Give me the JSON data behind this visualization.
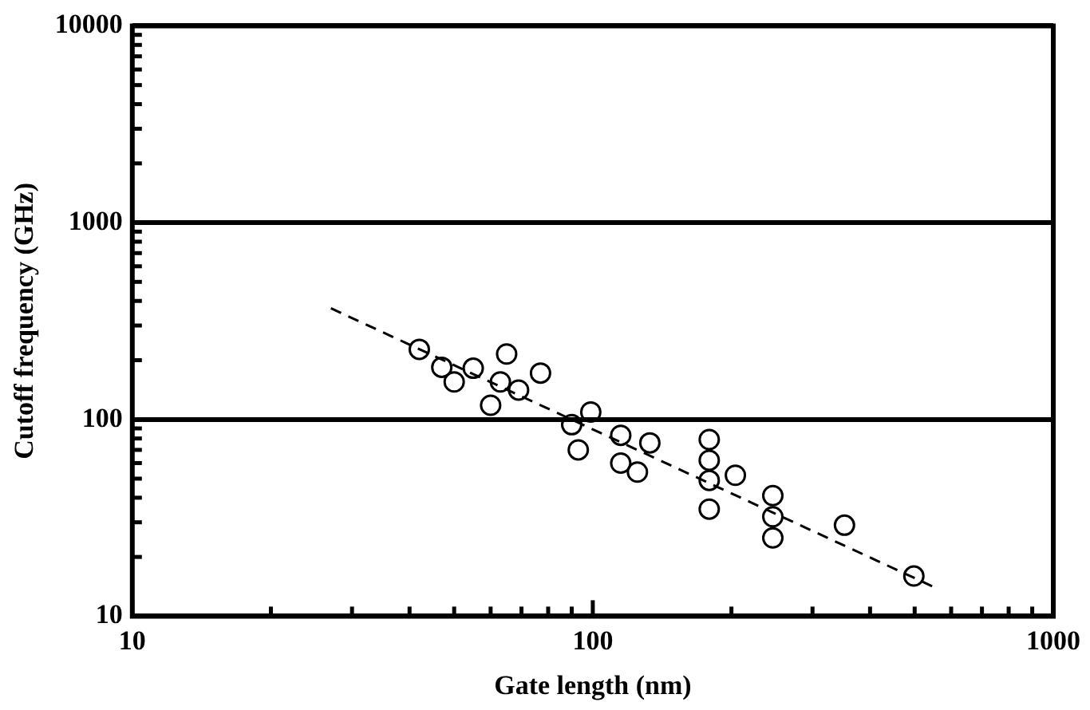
{
  "chart_data": {
    "type": "scatter",
    "xlabel": "Gate length (nm)",
    "ylabel": "Cutoff frequency (GHz)",
    "log": "xy",
    "xlim": [
      10,
      1000
    ],
    "ylim": [
      10,
      10000
    ],
    "xticks": [
      10,
      {
        "value": 20,
        "label": null
      },
      {
        "value": 30,
        "label": null
      },
      {
        "value": 40,
        "label": null
      },
      {
        "value": 50,
        "label": null
      },
      {
        "value": 60,
        "label": null
      },
      {
        "value": 70,
        "label": null
      },
      {
        "value": 80,
        "label": null
      },
      {
        "value": 90,
        "label": null
      },
      100,
      {
        "value": 200,
        "label": null
      },
      {
        "value": 300,
        "label": null
      },
      {
        "value": 400,
        "label": null
      },
      {
        "value": 500,
        "label": null
      },
      {
        "value": 600,
        "label": null
      },
      {
        "value": 700,
        "label": null
      },
      {
        "value": 800,
        "label": null
      },
      {
        "value": 900,
        "label": null
      },
      1000
    ],
    "yticks": [
      10,
      {
        "value": 20,
        "label": null
      },
      {
        "value": 30,
        "label": null
      },
      {
        "value": 40,
        "label": null
      },
      {
        "value": 50,
        "label": null
      },
      {
        "value": 60,
        "label": null
      },
      {
        "value": 70,
        "label": null
      },
      {
        "value": 80,
        "label": null
      },
      {
        "value": 90,
        "label": null
      },
      100,
      {
        "value": 200,
        "label": null
      },
      {
        "value": 300,
        "label": null
      },
      {
        "value": 400,
        "label": null
      },
      {
        "value": 500,
        "label": null
      },
      {
        "value": 600,
        "label": null
      },
      {
        "value": 700,
        "label": null
      },
      {
        "value": 800,
        "label": null
      },
      {
        "value": 900,
        "label": null
      },
      1000,
      {
        "value": 2000,
        "label": null
      },
      {
        "value": 3000,
        "label": null
      },
      {
        "value": 4000,
        "label": null
      },
      {
        "value": 5000,
        "label": null
      },
      {
        "value": 6000,
        "label": null
      },
      {
        "value": 7000,
        "label": null
      },
      {
        "value": 8000,
        "label": null
      },
      {
        "value": 9000,
        "label": null
      },
      10000
    ],
    "grid": "y",
    "legend": false,
    "series": [
      {
        "type": "scatter",
        "color": "#000000",
        "marker": "circle",
        "x": [
          42,
          47,
          50,
          55,
          60,
          63,
          65,
          69,
          77,
          90,
          93,
          99,
          115,
          115,
          125,
          133,
          179,
          179,
          179,
          179,
          204,
          246,
          246,
          246,
          352,
          498
        ],
        "values": [
          227,
          184,
          155,
          182,
          118,
          155,
          215,
          141,
          172,
          94,
          70,
          109,
          83,
          60,
          54,
          76,
          79,
          62,
          49,
          35,
          52,
          41,
          32,
          25,
          29,
          16
        ]
      },
      {
        "type": "line",
        "color": "#000000",
        "marker": "none",
        "line_style": "dashed",
        "x": [
          27,
          553
        ],
        "values": [
          367,
          14
        ]
      }
    ]
  }
}
